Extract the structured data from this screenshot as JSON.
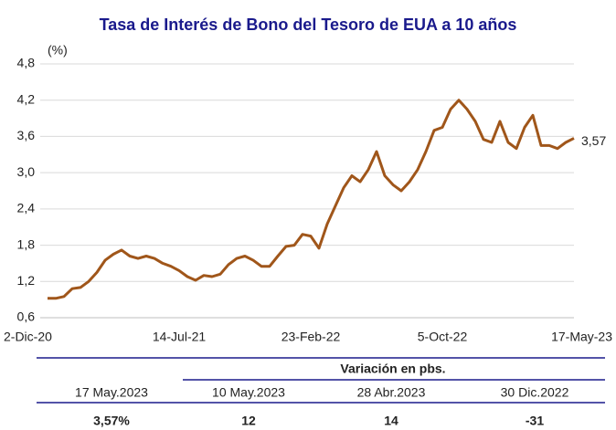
{
  "chart_data": {
    "type": "line",
    "title": "Tasa de Interés de Bono del Tesoro de EUA a 10 años",
    "y_label": "(%)",
    "categories": [
      "2-Dic-20",
      null,
      null,
      null,
      null,
      null,
      null,
      null,
      null,
      null,
      null,
      null,
      null,
      null,
      null,
      null,
      "14-Jul-21",
      null,
      null,
      null,
      null,
      null,
      null,
      null,
      null,
      null,
      null,
      null,
      null,
      null,
      null,
      null,
      "23-Feb-22",
      null,
      null,
      null,
      null,
      null,
      null,
      null,
      null,
      null,
      null,
      null,
      null,
      null,
      null,
      null,
      "5-Oct-22",
      null,
      null,
      null,
      null,
      null,
      null,
      null,
      null,
      null,
      null,
      null,
      null,
      null,
      null,
      null,
      "17-May-23"
    ],
    "series": [
      {
        "name": "Tasa",
        "color": "#a0561a",
        "values": [
          0.92,
          0.92,
          0.95,
          1.08,
          1.1,
          1.2,
          1.35,
          1.55,
          1.65,
          1.72,
          1.62,
          1.58,
          1.62,
          1.58,
          1.5,
          1.45,
          1.38,
          1.28,
          1.22,
          1.3,
          1.28,
          1.32,
          1.48,
          1.58,
          1.62,
          1.55,
          1.45,
          1.45,
          1.62,
          1.78,
          1.8,
          1.98,
          1.95,
          1.75,
          2.15,
          2.45,
          2.75,
          2.95,
          2.85,
          3.05,
          3.35,
          2.95,
          2.8,
          2.7,
          2.85,
          3.05,
          3.35,
          3.7,
          3.75,
          4.05,
          4.2,
          4.05,
          3.85,
          3.55,
          3.5,
          3.85,
          3.5,
          3.4,
          3.75,
          3.95,
          3.45,
          3.45,
          3.4,
          3.5,
          3.57
        ],
        "value_labels": [
          null,
          null,
          null,
          null,
          null,
          null,
          null,
          null,
          null,
          null,
          null,
          null,
          null,
          null,
          null,
          null,
          null,
          null,
          null,
          null,
          null,
          null,
          null,
          null,
          null,
          null,
          null,
          null,
          null,
          null,
          null,
          null,
          null,
          null,
          null,
          null,
          null,
          null,
          null,
          null,
          null,
          null,
          null,
          null,
          null,
          null,
          null,
          null,
          null,
          null,
          null,
          null,
          null,
          null,
          null,
          null,
          null,
          null,
          null,
          null,
          null,
          null,
          null,
          null,
          "3,57"
        ]
      }
    ],
    "ylim": [
      0.6,
      4.8
    ],
    "yticks": [
      {
        "value": 0.6,
        "label": "0,6"
      },
      {
        "value": 1.2,
        "label": "1,2"
      },
      {
        "value": 1.8,
        "label": "1,8"
      },
      {
        "value": 2.4,
        "label": "2,4"
      },
      {
        "value": 3.0,
        "label": "3,0"
      },
      {
        "value": 3.6,
        "label": "3,6"
      },
      {
        "value": 4.2,
        "label": "4,2"
      },
      {
        "value": 4.8,
        "label": "4,8"
      }
    ],
    "grid": true
  },
  "table": {
    "header": "Variación en pbs.",
    "columns": [
      "17 May.2023",
      "10 May.2023",
      "28 Abr.2023",
      "30 Dic.2022"
    ],
    "row": [
      "3,57%",
      "12",
      "14",
      "-31"
    ]
  }
}
